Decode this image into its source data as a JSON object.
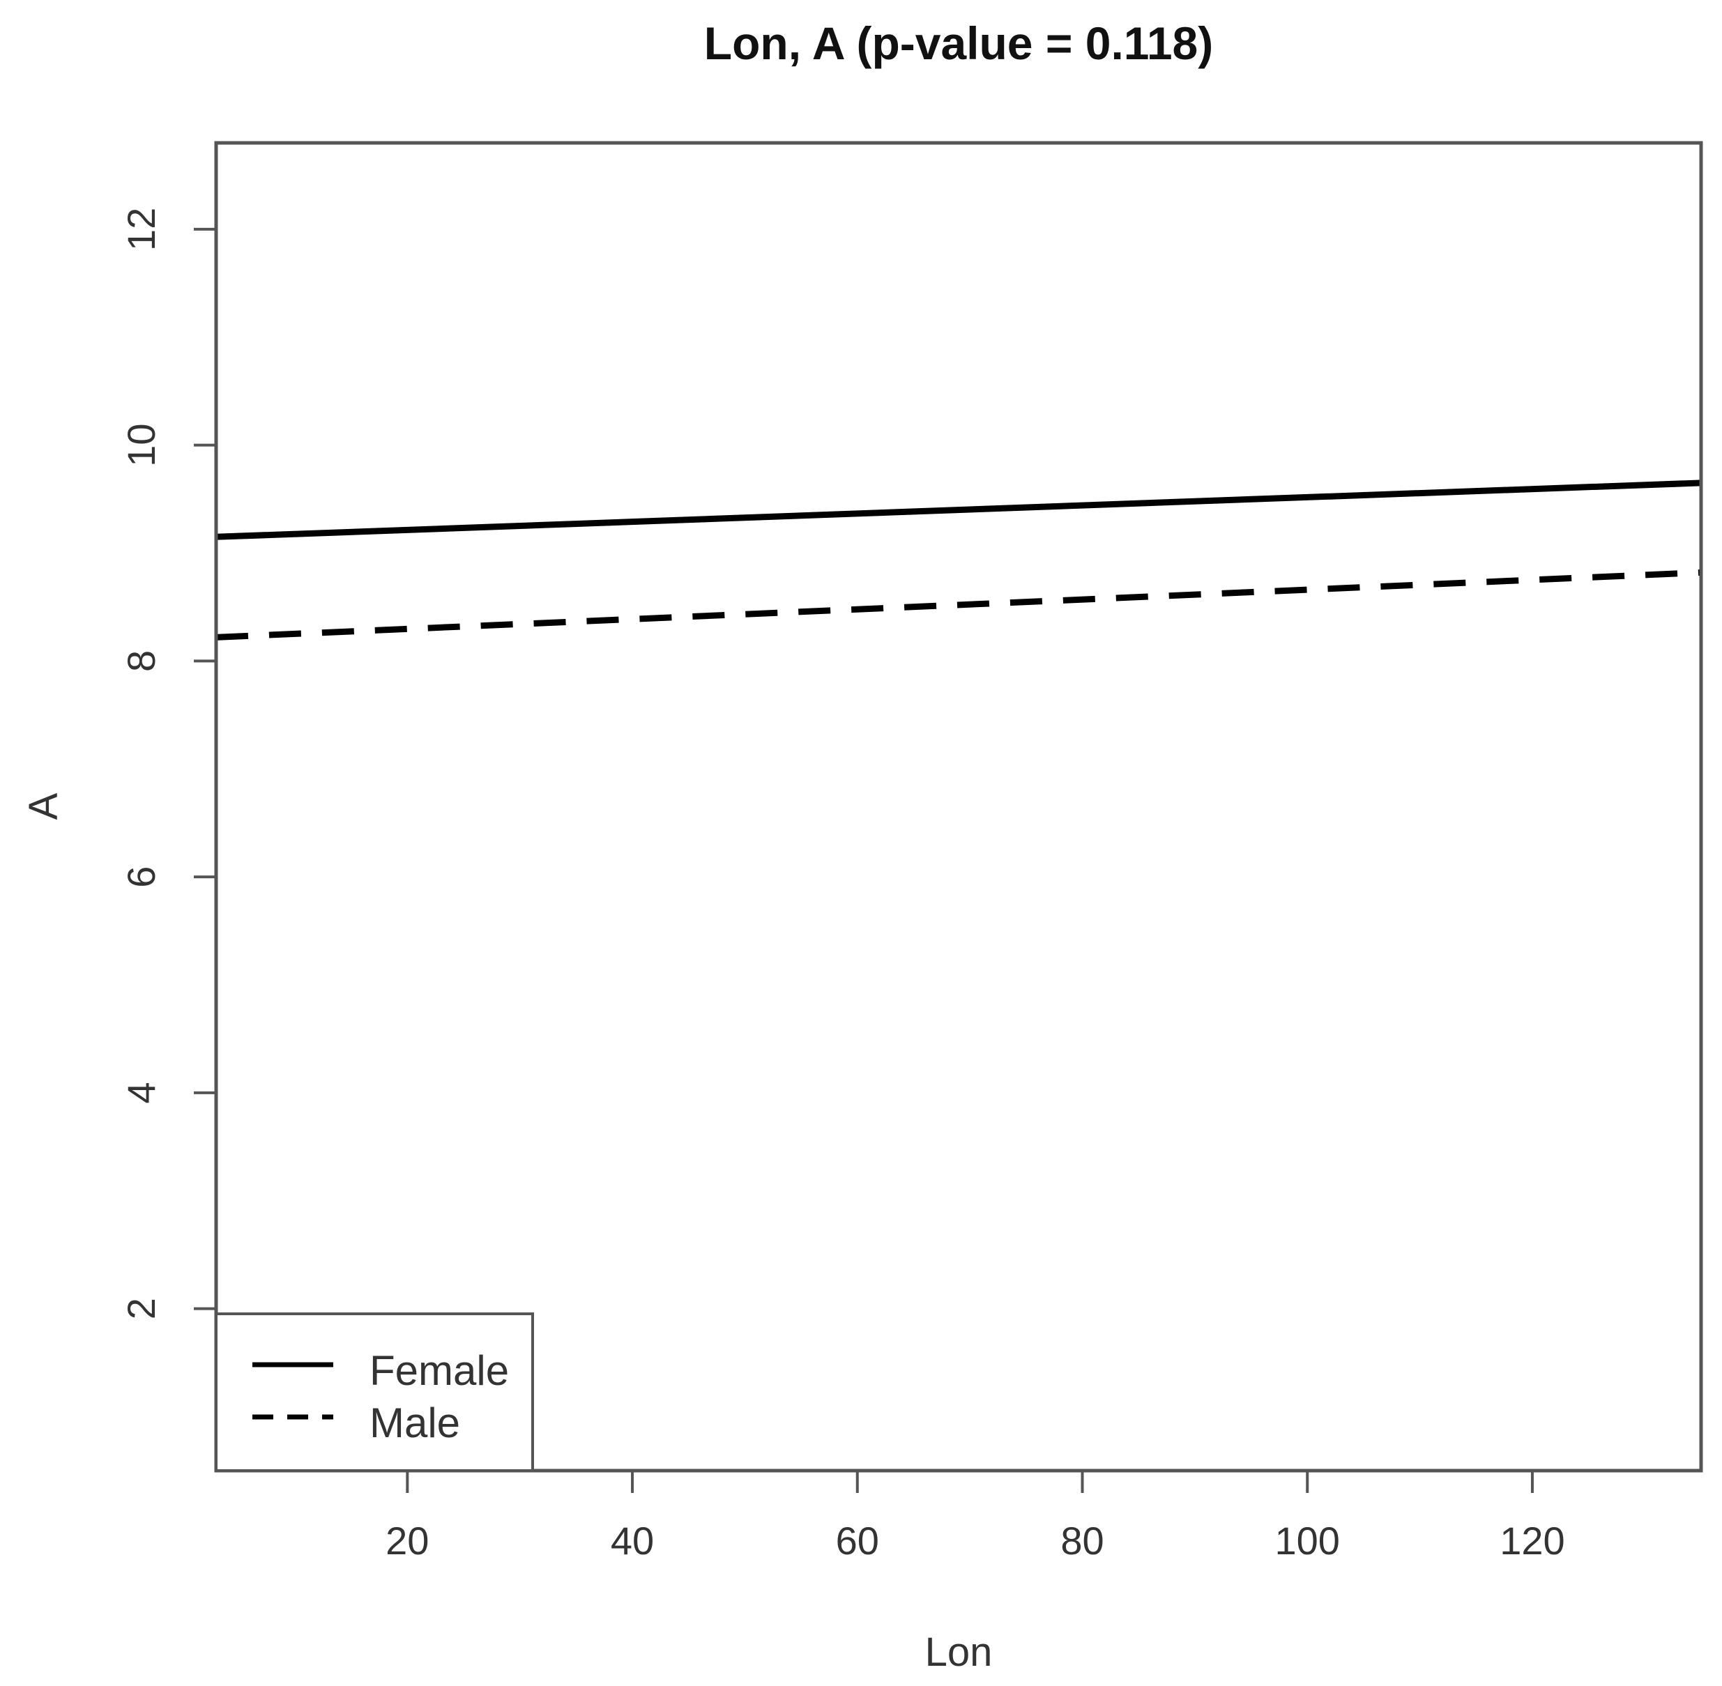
{
  "chart_data": {
    "type": "line",
    "title": "Lon, A (p-value = 0.118)",
    "xlabel": "Lon",
    "ylabel": "A",
    "xlim": [
      3,
      135
    ],
    "ylim": [
      0.5,
      12.8
    ],
    "xticks": [
      20,
      40,
      60,
      80,
      100,
      120
    ],
    "yticks": [
      2,
      4,
      6,
      8,
      10,
      12
    ],
    "grid": false,
    "legend_position": "bottom-left",
    "series": [
      {
        "name": "Female",
        "style": "solid",
        "color": "#000000",
        "x": [
          3,
          135
        ],
        "y": [
          9.15,
          9.65
        ]
      },
      {
        "name": "Male",
        "style": "dashed",
        "color": "#000000",
        "x": [
          3,
          135
        ],
        "y": [
          8.22,
          8.82
        ]
      }
    ]
  }
}
